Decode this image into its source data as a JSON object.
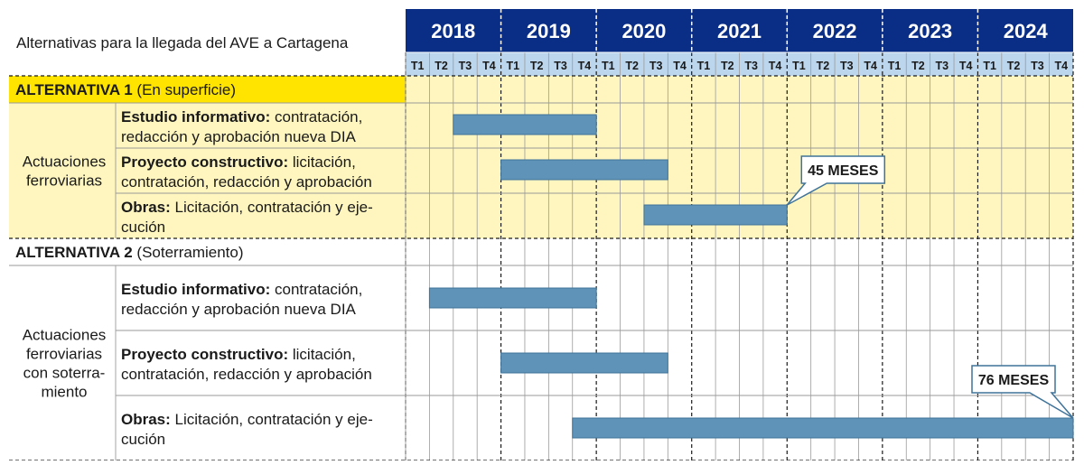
{
  "chart_data": {
    "type": "gantt",
    "title": "Alternativas para la llegada del AVE a Cartagena",
    "years": [
      "2018",
      "2019",
      "2020",
      "2021",
      "2022",
      "2023",
      "2024"
    ],
    "quarters": [
      "T1",
      "T2",
      "T3",
      "T4"
    ],
    "groups": [
      {
        "title_bold": "ALTERNATIVA 1",
        "title_rest": " (En superficie)",
        "category_lines": [
          "Actuaciones",
          "ferroviarias"
        ],
        "highlight": true,
        "tasks": [
          {
            "bold": "Estudio informativo:",
            "rest": " contratación,",
            "line2": "redacción y aprobación nueva DIA",
            "start": "2018-T3",
            "end": "2019-T4"
          },
          {
            "bold": "Proyecto constructivo:",
            "rest": " licitación,",
            "line2": "contratación, redacción y aprobación",
            "start": "2019-T1",
            "end": "2020-T3"
          },
          {
            "bold": "Obras:",
            "rest": " Licitación, contratación y eje-",
            "line2": "cución",
            "start": "2020-T3",
            "end": "2021-T4"
          }
        ],
        "callout": {
          "text": "45 MESES",
          "anchor_task": 2
        }
      },
      {
        "title_bold": "ALTERNATIVA 2",
        "title_rest": " (Soterramiento)",
        "category_lines": [
          "Actuaciones",
          "ferroviarias",
          "con soterra-",
          "miento"
        ],
        "highlight": false,
        "tasks": [
          {
            "bold": "Estudio informativo:",
            "rest": " contratación,",
            "line2": "redacción y aprobación nueva DIA",
            "start": "2018-T2",
            "end": "2019-T4"
          },
          {
            "bold": "Proyecto constructivo:",
            "rest": " licitación,",
            "line2": "contratación, redacción y aprobación",
            "start": "2019-T1",
            "end": "2020-T3"
          },
          {
            "bold": "Obras:",
            "rest": " Licitación, contratación y eje-",
            "line2": "cución",
            "start": "2019-T4",
            "end": "2024-T4"
          }
        ],
        "callout": {
          "text": "76 MESES",
          "anchor_task": 2
        }
      }
    ],
    "colors": {
      "year_header": "#0a2d85",
      "quarter_header": "#bcd6ee",
      "highlight_bg": "#fff6bf",
      "group_title_bg": "#ffe400",
      "bar": "#5f93b8",
      "bar_border": "#3f7399",
      "callout_border": "#3f7399",
      "grid": "#9a9a9a"
    }
  }
}
